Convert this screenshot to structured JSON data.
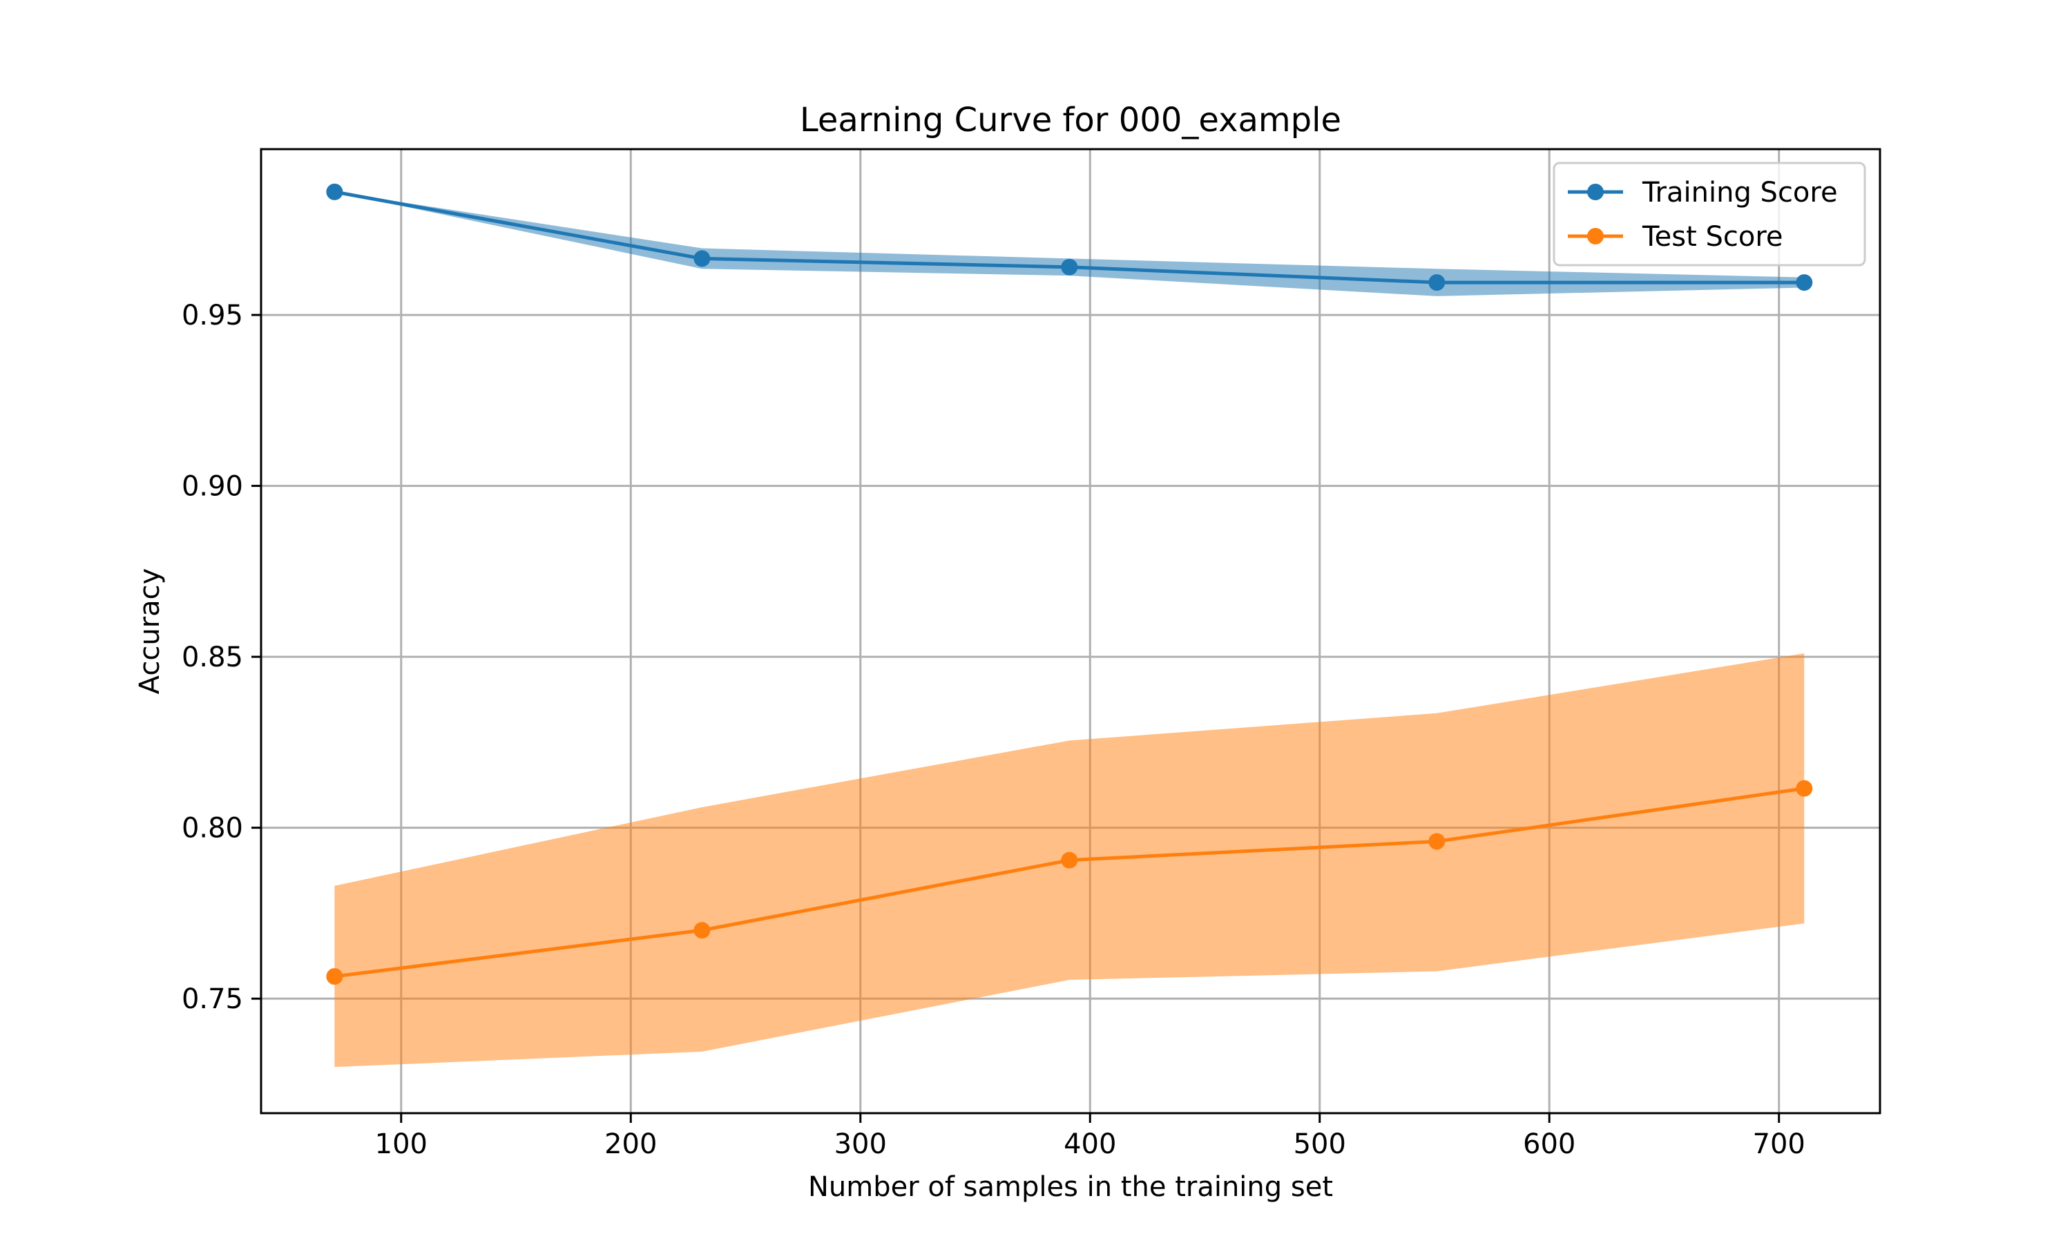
{
  "chart_data": {
    "type": "line",
    "title": "Learning Curve for 000_example",
    "xlabel": "Number of samples in the training set",
    "ylabel": "Accuracy",
    "xlim": [
      39,
      744
    ],
    "ylim": [
      0.7165,
      0.9985
    ],
    "xticks": [
      100,
      200,
      300,
      400,
      500,
      600,
      700
    ],
    "xtick_labels": [
      "100",
      "200",
      "300",
      "400",
      "500",
      "600",
      "700"
    ],
    "yticks": [
      0.75,
      0.8,
      0.85,
      0.9,
      0.95
    ],
    "ytick_labels": [
      "0.75",
      "0.80",
      "0.85",
      "0.90",
      "0.95"
    ],
    "grid": true,
    "legend_position": "top-right",
    "x": [
      71,
      231,
      391,
      551,
      711
    ],
    "series": [
      {
        "name": "Training Score",
        "color": "#1f77b4",
        "band_color": "#1f77b4",
        "band_opacity": 0.5,
        "values": [
          0.986,
          0.9665,
          0.964,
          0.9595,
          0.9595
        ],
        "band_upper": [
          0.986,
          0.9695,
          0.9665,
          0.9635,
          0.961
        ],
        "band_lower": [
          0.986,
          0.9635,
          0.9615,
          0.9555,
          0.958
        ]
      },
      {
        "name": "Test Score",
        "color": "#ff7f0e",
        "band_color": "#ff7f0e",
        "band_opacity": 0.5,
        "values": [
          0.7565,
          0.77,
          0.7905,
          0.796,
          0.8115
        ],
        "band_upper": [
          0.783,
          0.806,
          0.8255,
          0.8335,
          0.851
        ],
        "band_lower": [
          0.73,
          0.7345,
          0.7555,
          0.758,
          0.772
        ]
      }
    ]
  }
}
